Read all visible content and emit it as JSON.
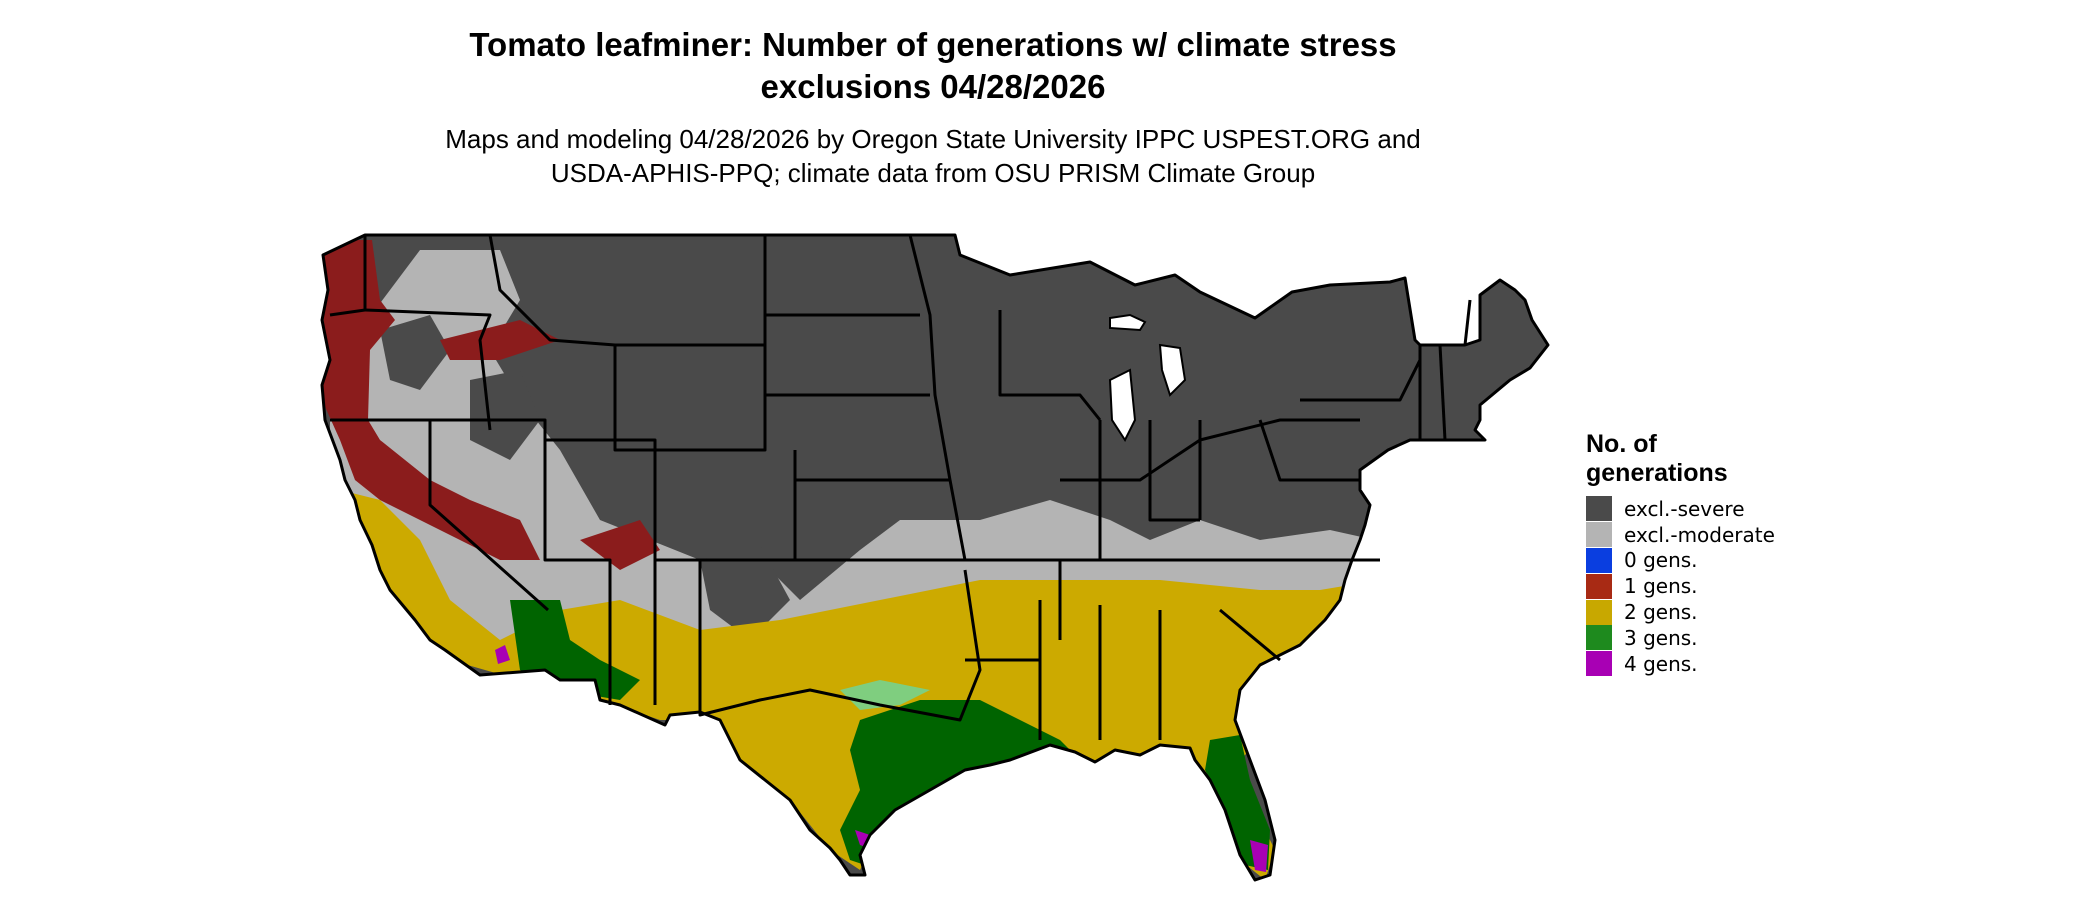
{
  "title_line1": "Tomato leafminer: Number of generations w/ climate stress",
  "title_line2": "exclusions 04/28/2026",
  "subtitle_line1": "Maps and modeling 04/28/2026 by Oregon State University IPPC USPEST.ORG and",
  "subtitle_line2": "USDA-APHIS-PPQ; climate data from OSU PRISM Climate Group",
  "legend": {
    "title_line1": "No. of",
    "title_line2": "generations",
    "items": [
      {
        "label": "excl.-severe",
        "color": "#4a4a4a"
      },
      {
        "label": "excl.-moderate",
        "color": "#b4b4b4"
      },
      {
        "label": "0 gens.",
        "color": "#0a3ee0"
      },
      {
        "label": "1 gens.",
        "color": "#a82a14"
      },
      {
        "label": "2 gens.",
        "color": "#c8a800"
      },
      {
        "label": "3 gens.",
        "color": "#1e8a1e"
      },
      {
        "label": "4 gens.",
        "color": "#a800b4"
      }
    ]
  },
  "map_colors": {
    "excl_severe": "#4a4a4a",
    "excl_moderate": "#b4b4b4",
    "gen1": "#8b1c1c",
    "gen2": "#ccaa00",
    "gen3": "#006400",
    "gen3_light": "#7fce7f",
    "gen4": "#a800b4",
    "borders": "#000000"
  }
}
